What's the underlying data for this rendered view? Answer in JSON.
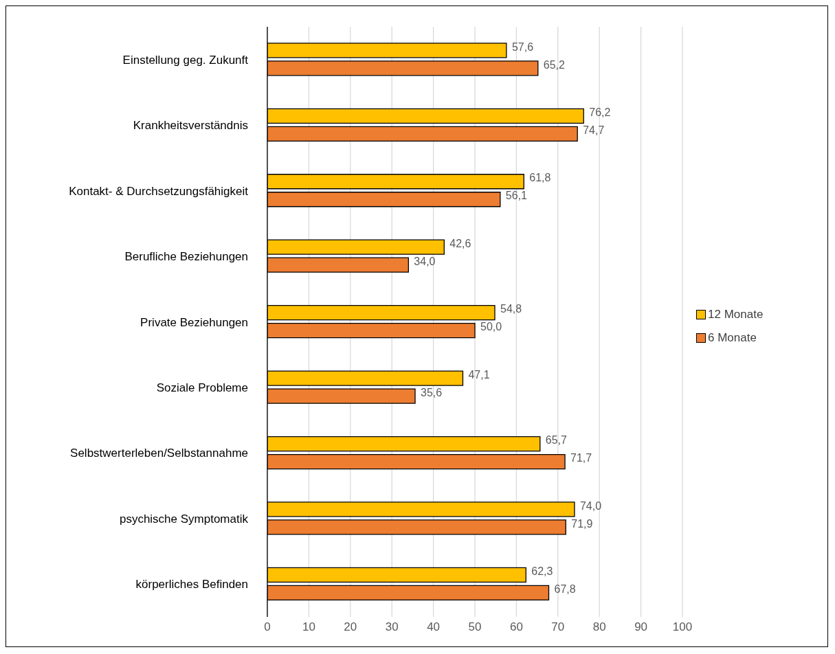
{
  "chart_data": {
    "type": "bar",
    "orientation": "horizontal",
    "categories": [
      "Einstellung geg. Zukunft",
      "Krankheitsverständnis",
      "Kontakt- & Durchsetzungsfähigkeit",
      "Berufliche Beziehungen",
      "Private Beziehungen",
      "Soziale Probleme",
      "Selbstwerterleben/Selbstannahme",
      "psychische Symptomatik",
      "körperliches Befinden"
    ],
    "series": [
      {
        "name": "12 Monate",
        "color": "#ffc000",
        "values": [
          57.6,
          76.2,
          61.8,
          42.6,
          54.8,
          47.1,
          65.7,
          74.0,
          62.3
        ],
        "value_labels": [
          "57,6",
          "76,2",
          "61,8",
          "42,6",
          "54,8",
          "47,1",
          "65,7",
          "74,0",
          "62,3"
        ]
      },
      {
        "name": "6 Monate",
        "color": "#ed7d31",
        "values": [
          65.2,
          74.7,
          56.1,
          34.0,
          50.0,
          35.6,
          71.7,
          71.9,
          67.8
        ],
        "value_labels": [
          "65,2",
          "74,7",
          "56,1",
          "34,0",
          "50,0",
          "35,6",
          "71,7",
          "71,9",
          "67,8"
        ]
      }
    ],
    "xlim": [
      0,
      100
    ],
    "xticks": [
      0,
      10,
      20,
      30,
      40,
      50,
      60,
      70,
      80,
      90,
      100
    ],
    "grid": "x",
    "legend": "right"
  }
}
